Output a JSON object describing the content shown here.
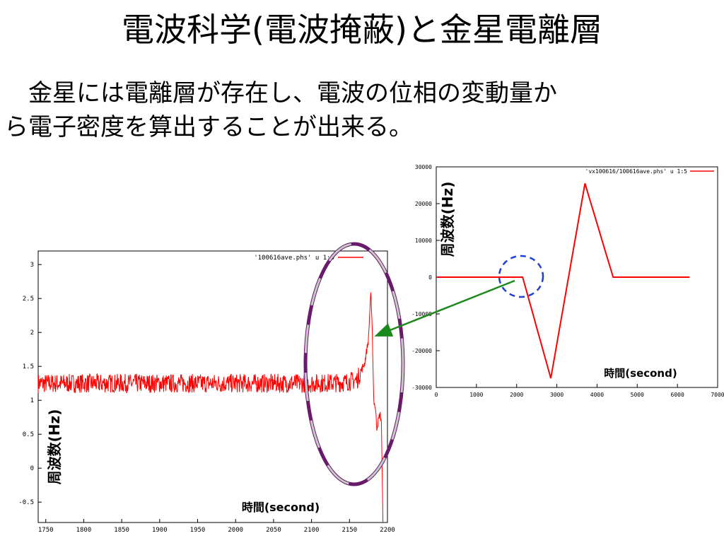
{
  "slide": {
    "title": "電波科学(電波掩蔽)と金星電離層",
    "text_line1": "金星には電離層が存在し、電波の位相の変動量か",
    "text_line2": "ら電子密度を算出することが出来る。"
  },
  "chart_data": [
    {
      "type": "line",
      "legend": "'100616ave.phs' u 1:5",
      "xlabel": "時間(second)",
      "ylabel": "周波数(Hz)",
      "xlim": [
        1740,
        2200
      ],
      "ylim": [
        -0.8,
        3.2
      ],
      "xticks": [
        "1750",
        "1800",
        "1850",
        "1900",
        "1950",
        "2000",
        "2050",
        "2100",
        "2150",
        "2200"
      ],
      "yticks": [
        "-0.5",
        "0",
        "0.5",
        "1",
        "1.5",
        "2",
        "2.5",
        "3"
      ],
      "series": [
        {
          "x": [
            1740,
            2100,
            2140,
            2160,
            2170,
            2175,
            2178,
            2180,
            2182,
            2184,
            2186,
            2190,
            2192,
            2194
          ],
          "y": [
            1.25,
            1.25,
            1.26,
            1.3,
            1.55,
            1.9,
            2.6,
            2.0,
            1.0,
            0.9,
            0.6,
            0.8,
            0.7,
            -0.8
          ]
        }
      ],
      "color": "#ff0000"
    },
    {
      "type": "line",
      "legend": "'vx100616/100616ave.phs' u 1:5",
      "xlabel": "時間(second)",
      "ylabel": "周波数(Hz)",
      "xlim": [
        0,
        7000
      ],
      "ylim": [
        -30000,
        30000
      ],
      "xticks": [
        "0",
        "1000",
        "2000",
        "3000",
        "4000",
        "5000",
        "6000",
        "7000"
      ],
      "yticks": [
        "30000",
        "20000",
        "10000",
        "0",
        "-10000",
        "-20000",
        "-30000"
      ],
      "series": [
        {
          "x": [
            0,
            2150,
            2850,
            3700,
            4400,
            6300
          ],
          "y": [
            0,
            0,
            -27500,
            25500,
            0,
            0
          ]
        }
      ],
      "color": "#ff0000"
    }
  ]
}
